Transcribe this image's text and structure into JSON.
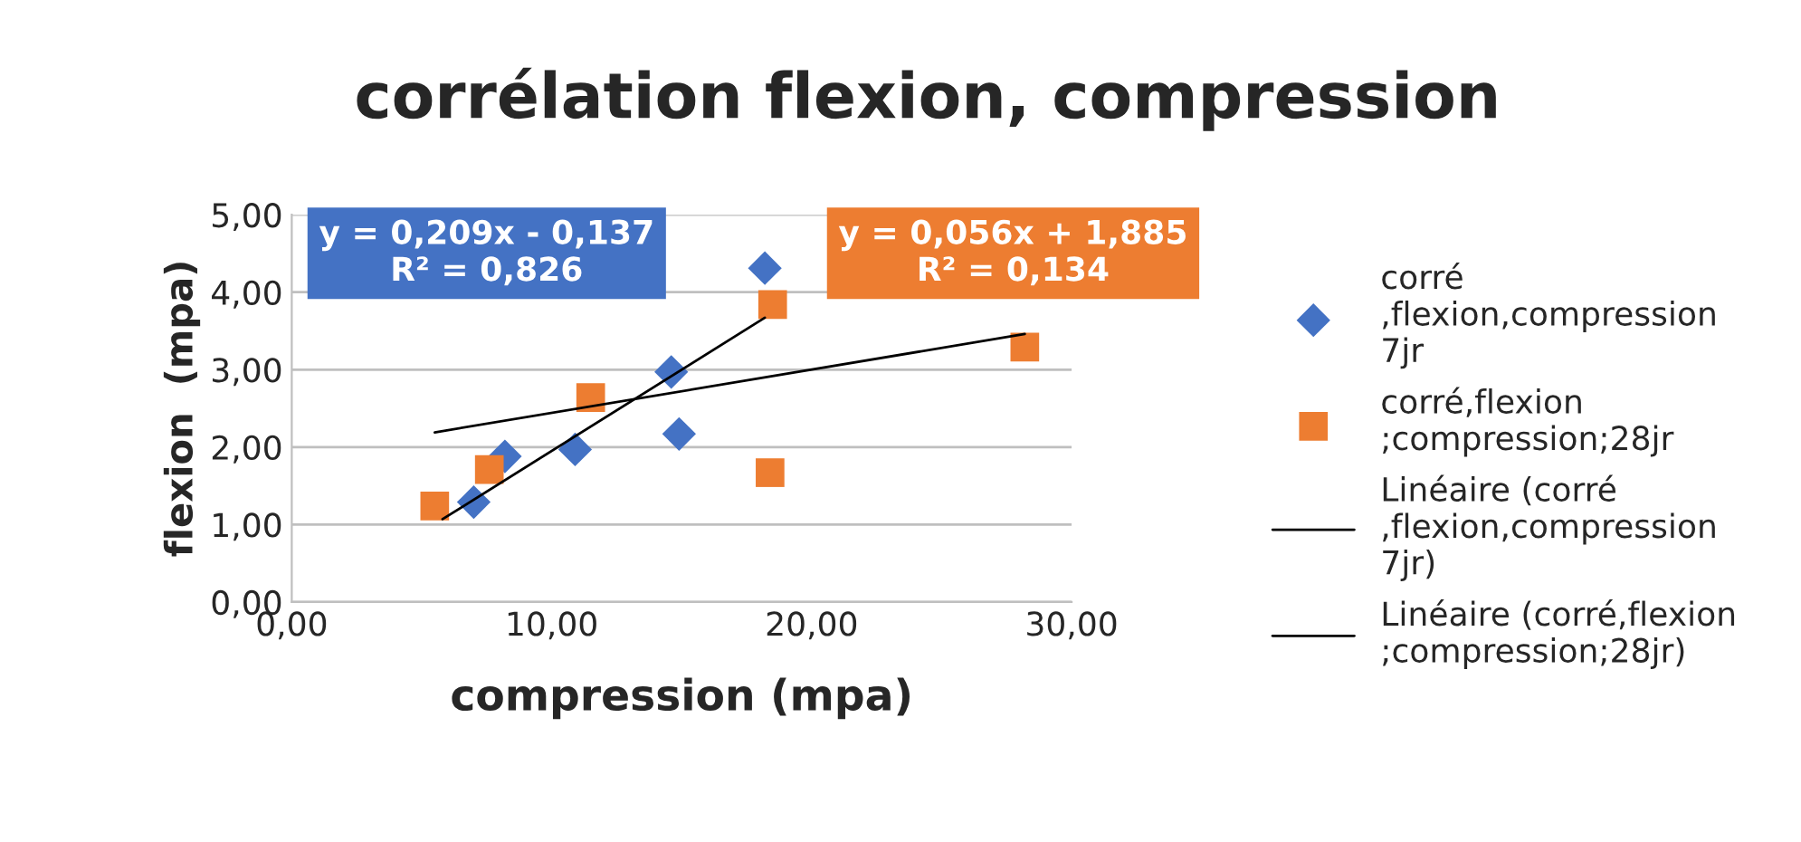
{
  "chart_data": {
    "type": "scatter",
    "title": "corrélation flexion, compression",
    "xlabel": "compression (mpa)",
    "ylabel": "flexion  (mpa)",
    "xlim": [
      0,
      30
    ],
    "xticks": [
      {
        "value": 0,
        "label": "0,00"
      },
      {
        "value": 10,
        "label": "10,00"
      },
      {
        "value": 20,
        "label": "20,00"
      },
      {
        "value": 30,
        "label": "30,00"
      }
    ],
    "ylim": [
      0,
      5
    ],
    "yticks": [
      {
        "value": 0,
        "label": "0,00"
      },
      {
        "value": 1,
        "label": "1,00"
      },
      {
        "value": 2,
        "label": "2,00"
      },
      {
        "value": 3,
        "label": "3,00"
      },
      {
        "value": 4,
        "label": "4,00"
      },
      {
        "value": 5,
        "label": "5,00"
      }
    ],
    "grid": "y",
    "legend": "right",
    "series": [
      {
        "name": "corré\n,flexion,compression\n7jr",
        "marker": "diamond",
        "color": "#4472c4",
        "x": [
          7.0,
          8.2,
          10.9,
          14.6,
          14.9,
          18.2
        ],
        "values": [
          1.29,
          1.88,
          1.97,
          2.97,
          2.17,
          4.31
        ]
      },
      {
        "name": "corré,flexion\n;compression;28jr",
        "marker": "square",
        "color": "#ed7d31",
        "x": [
          5.5,
          7.6,
          11.5,
          18.5,
          18.4,
          28.2
        ],
        "values": [
          1.24,
          1.71,
          2.64,
          3.84,
          1.67,
          3.29
        ]
      },
      {
        "name": "Linéaire (corré\n,flexion,compression\n7jr)",
        "type": "line",
        "marker": "none",
        "color": "#000000",
        "x": [
          5.8,
          18.2
        ],
        "values": [
          1.07,
          3.67
        ]
      },
      {
        "name": "Linéaire (corré,flexion\n;compression;28jr)",
        "type": "line",
        "marker": "none",
        "color": "#000000",
        "x": [
          5.5,
          28.2
        ],
        "values": [
          2.19,
          3.46
        ]
      }
    ],
    "annotations": [
      "y = 0,209x - 0,137\nR² = 0,826",
      "y = 0,056x + 1,885\nR² = 0,134"
    ]
  }
}
